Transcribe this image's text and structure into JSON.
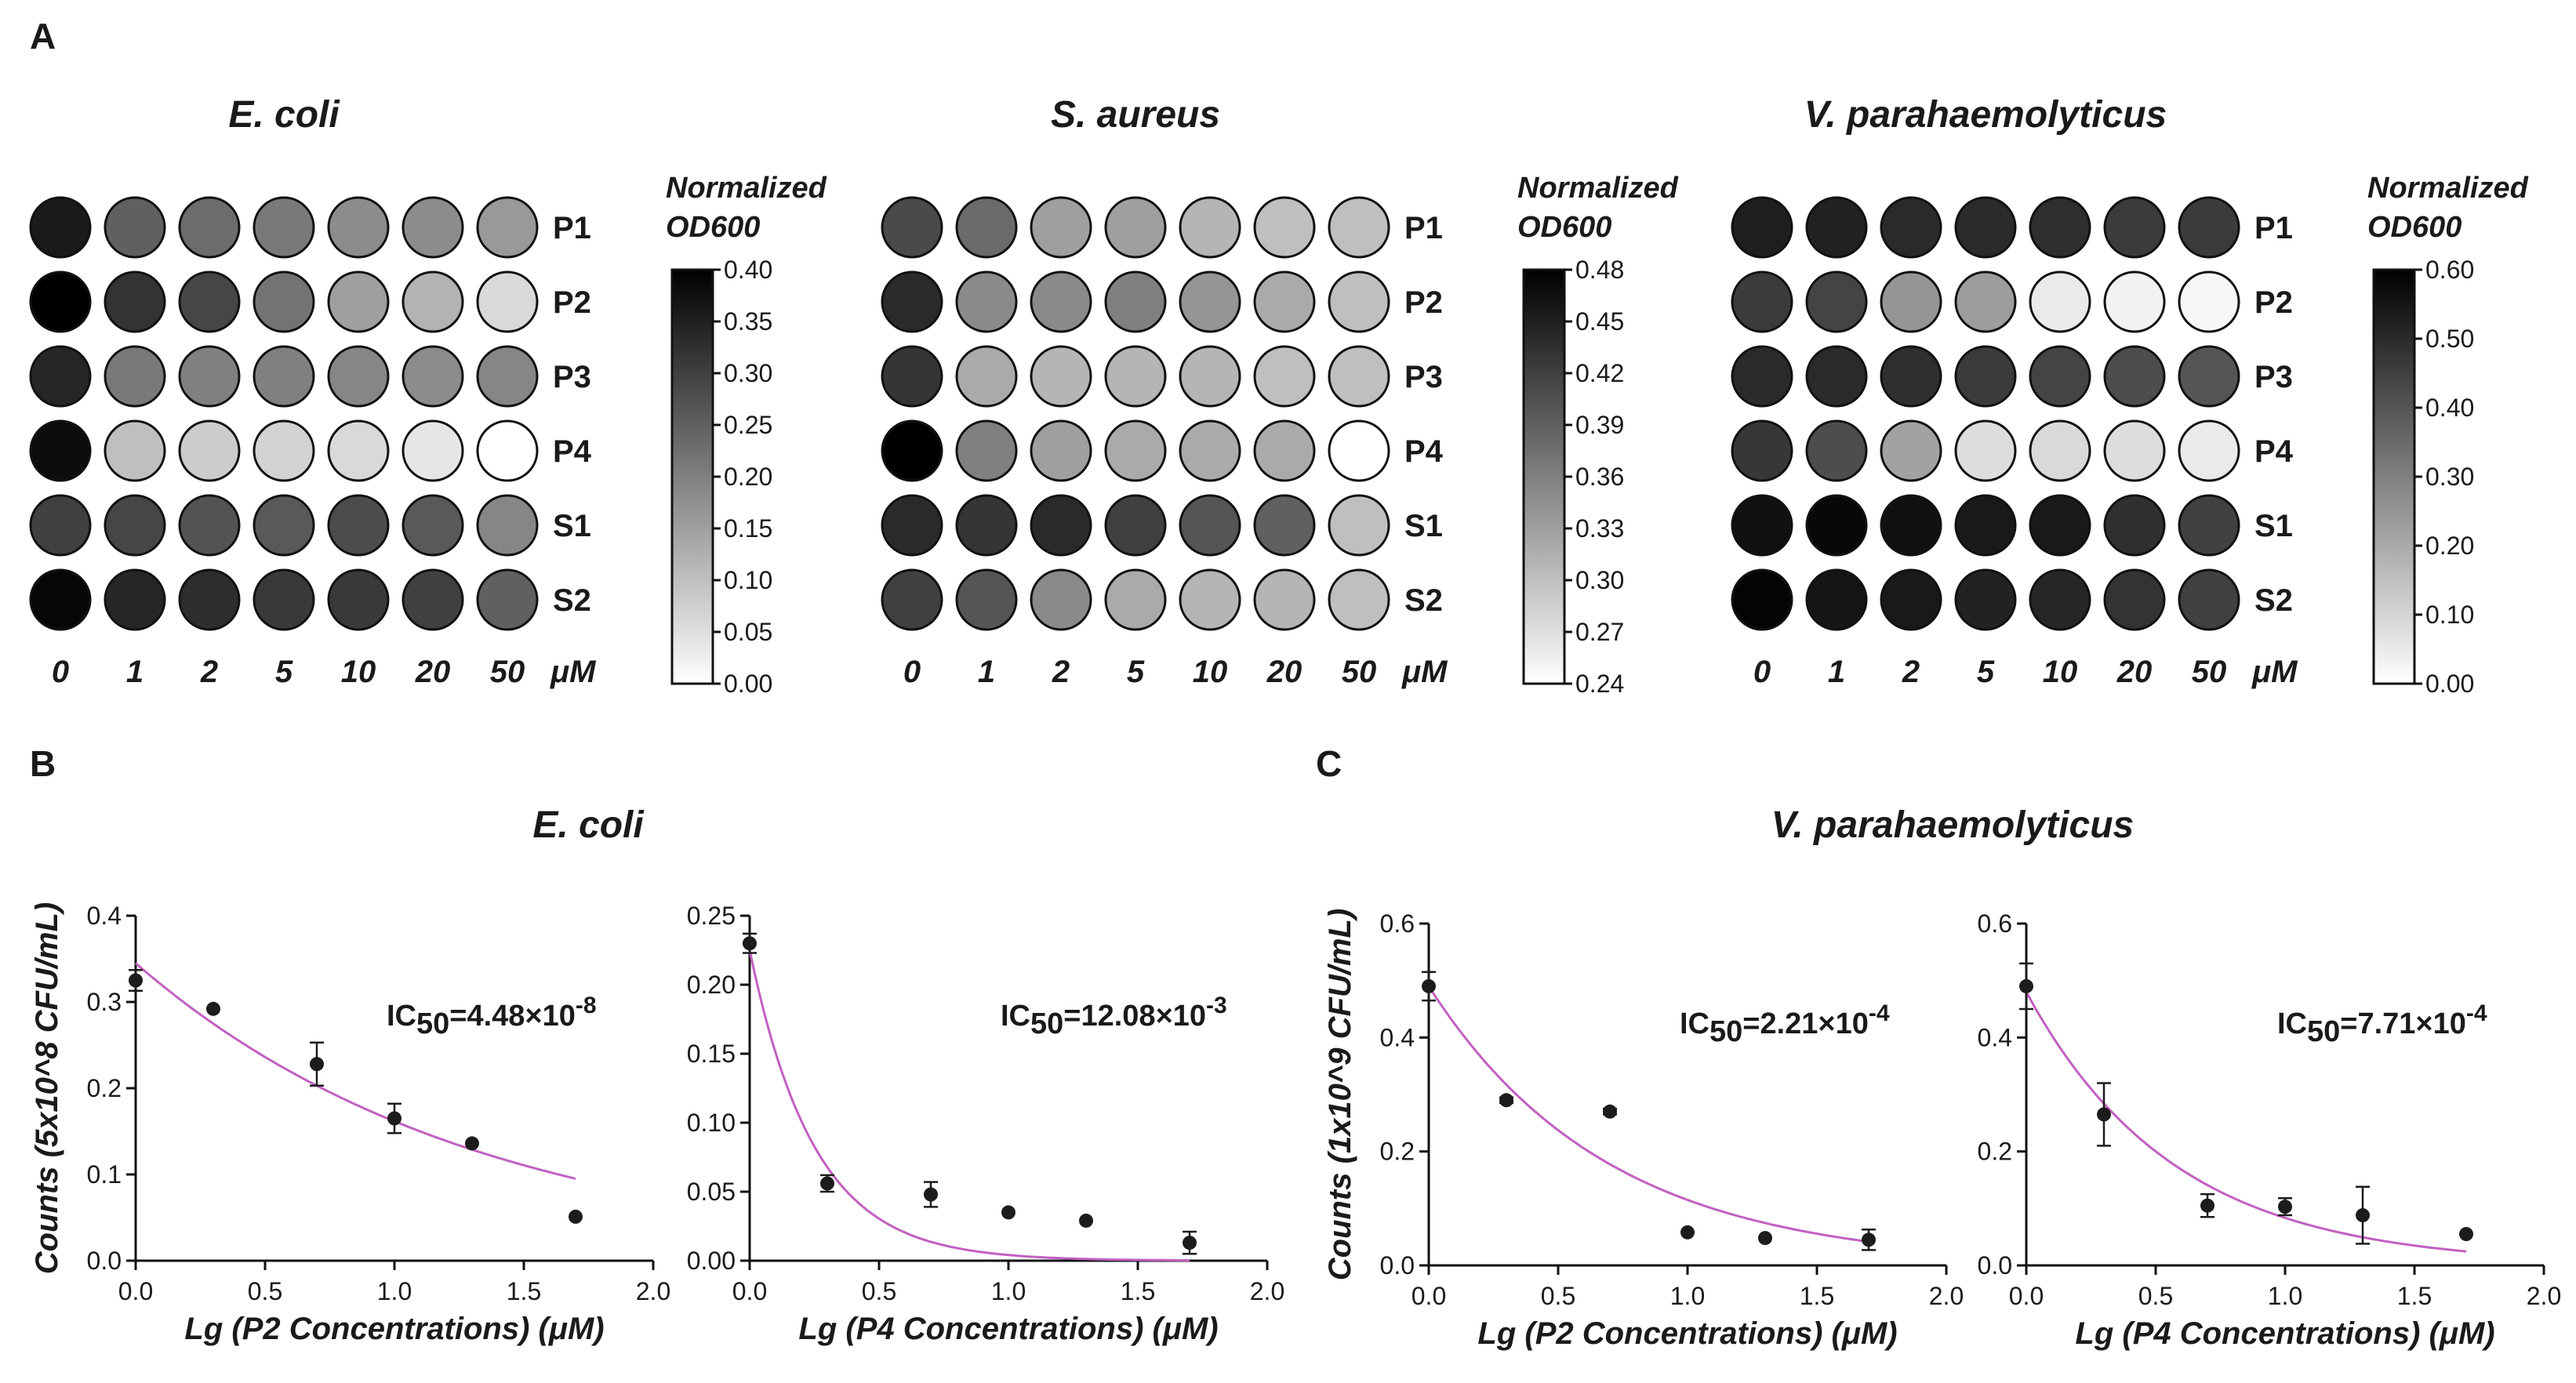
{
  "colors": {
    "curve": "#c161c1",
    "point": "#1c1c1c",
    "outline": "#111111"
  },
  "panel_labels": {
    "a": "A",
    "b": "B",
    "c": "C"
  },
  "heatmaps": [
    {
      "title": "E. coli",
      "row_labels": [
        "P1",
        "P2",
        "P3",
        "P4",
        "S1",
        "S2"
      ],
      "col_labels": [
        "0",
        "1",
        "2",
        "5",
        "10",
        "20",
        "50"
      ],
      "unit": "μM",
      "colorbar_label": [
        "Normalized",
        "OD600"
      ],
      "ticks": [
        "0.40",
        "0.35",
        "0.30",
        "0.25",
        "0.20",
        "0.15",
        "0.10",
        "0.05",
        "0.00"
      ],
      "vmin": 0.0,
      "vmax": 0.4,
      "values": [
        [
          0.36,
          0.25,
          0.23,
          0.21,
          0.18,
          0.18,
          0.16
        ],
        [
          0.4,
          0.32,
          0.29,
          0.22,
          0.15,
          0.12,
          0.06
        ],
        [
          0.34,
          0.21,
          0.2,
          0.2,
          0.19,
          0.18,
          0.19
        ],
        [
          0.38,
          0.1,
          0.08,
          0.07,
          0.06,
          0.04,
          0.0
        ],
        [
          0.3,
          0.29,
          0.27,
          0.26,
          0.28,
          0.26,
          0.19
        ],
        [
          0.39,
          0.34,
          0.33,
          0.31,
          0.31,
          0.3,
          0.25
        ]
      ]
    },
    {
      "title": "S. aureus",
      "row_labels": [
        "P1",
        "P2",
        "P3",
        "P4",
        "S1",
        "S2"
      ],
      "col_labels": [
        "0",
        "1",
        "2",
        "5",
        "10",
        "20",
        "50"
      ],
      "unit": "μM",
      "colorbar_label": [
        "Normalized",
        "OD600"
      ],
      "ticks": [
        "0.48",
        "0.45",
        "0.42",
        "0.39",
        "0.36",
        "0.33",
        "0.30",
        "0.27",
        "0.24"
      ],
      "vmin": 0.24,
      "vmax": 0.48,
      "values": [
        [
          0.41,
          0.38,
          0.33,
          0.33,
          0.31,
          0.3,
          0.3
        ],
        [
          0.44,
          0.35,
          0.35,
          0.36,
          0.34,
          0.32,
          0.3
        ],
        [
          0.43,
          0.32,
          0.31,
          0.31,
          0.31,
          0.3,
          0.3
        ],
        [
          0.48,
          0.36,
          0.33,
          0.32,
          0.32,
          0.32,
          0.24
        ],
        [
          0.44,
          0.43,
          0.44,
          0.42,
          0.4,
          0.39,
          0.3
        ],
        [
          0.42,
          0.4,
          0.35,
          0.32,
          0.31,
          0.31,
          0.3
        ]
      ]
    },
    {
      "title": "V. parahaemolyticus",
      "row_labels": [
        "P1",
        "P2",
        "P3",
        "P4",
        "S1",
        "S2"
      ],
      "col_labels": [
        "0",
        "1",
        "2",
        "5",
        "10",
        "20",
        "50"
      ],
      "unit": "μM",
      "colorbar_label": [
        "Normalized",
        "OD600"
      ],
      "ticks": [
        "0.60",
        "0.50",
        "0.40",
        "0.30",
        "0.20",
        "0.10",
        "0.00"
      ],
      "vmin": 0.0,
      "vmax": 0.6,
      "values": [
        [
          0.53,
          0.52,
          0.5,
          0.5,
          0.49,
          0.46,
          0.46
        ],
        [
          0.46,
          0.44,
          0.25,
          0.23,
          0.05,
          0.03,
          0.02
        ],
        [
          0.5,
          0.5,
          0.49,
          0.46,
          0.44,
          0.42,
          0.4
        ],
        [
          0.47,
          0.42,
          0.22,
          0.08,
          0.09,
          0.08,
          0.05
        ],
        [
          0.56,
          0.58,
          0.56,
          0.54,
          0.54,
          0.49,
          0.45
        ],
        [
          0.59,
          0.55,
          0.54,
          0.52,
          0.51,
          0.48,
          0.45
        ]
      ]
    }
  ],
  "chart_titles": {
    "b": "E. coli",
    "c": "V. parahaemolyticus"
  },
  "chart_data": [
    {
      "type": "scatter",
      "panel": "B",
      "ylabel": "Counts (5x10^8 CFU/mL)",
      "xlabel": "Lg (P2 Concentrations) (μM)",
      "xlim": [
        0,
        2.0
      ],
      "ylim": [
        0,
        0.4
      ],
      "xticks": [
        "0.0",
        "0.5",
        "1.0",
        "1.5",
        "2.0"
      ],
      "yticks": [
        "0.0",
        "0.1",
        "0.2",
        "0.3",
        "0.4"
      ],
      "x": [
        0,
        0.3,
        0.7,
        1.0,
        1.3,
        1.7
      ],
      "y": [
        0.325,
        0.292,
        0.228,
        0.165,
        0.136,
        0.051
      ],
      "err": [
        0.012,
        0.004,
        0.025,
        0.017,
        0.004,
        0.003
      ],
      "fit": {
        "a": 0.345,
        "k": 0.758
      },
      "ic50_text": "IC",
      "ic50_sub": "50",
      "ic50_value": "=4.48×10",
      "ic50_exp": "-8"
    },
    {
      "type": "scatter",
      "panel": "B",
      "ylabel": "",
      "xlabel": "Lg (P4 Concentrations) (μM)",
      "xlim": [
        0,
        2.0
      ],
      "ylim": [
        0,
        0.25
      ],
      "xticks": [
        "0.0",
        "0.5",
        "1.0",
        "1.5",
        "2.0"
      ],
      "yticks": [
        "0.00",
        "0.05",
        "0.10",
        "0.15",
        "0.20",
        "0.25"
      ],
      "x": [
        0,
        0.3,
        0.7,
        1.0,
        1.3,
        1.7
      ],
      "y": [
        0.23,
        0.056,
        0.048,
        0.035,
        0.029,
        0.013
      ],
      "err": [
        0.007,
        0.006,
        0.009,
        0.004,
        0.002,
        0.008
      ],
      "fit": {
        "a": 0.225,
        "k": 4.0
      },
      "ic50_text": "IC",
      "ic50_sub": "50",
      "ic50_value": "=12.08×10",
      "ic50_exp": "-3"
    },
    {
      "type": "scatter",
      "panel": "C",
      "ylabel": "Counts (1x10^9 CFU/mL)",
      "xlabel": "Lg (P2 Concentrations) (μM)",
      "xlim": [
        0,
        2.0
      ],
      "ylim": [
        0,
        0.6
      ],
      "xticks": [
        "0.0",
        "0.5",
        "1.0",
        "1.5",
        "2.0"
      ],
      "yticks": [
        "0.0",
        "0.2",
        "0.4",
        "0.6"
      ],
      "x": [
        0,
        0.3,
        0.7,
        1.0,
        1.3,
        1.7
      ],
      "y": [
        0.49,
        0.29,
        0.27,
        0.058,
        0.048,
        0.045
      ],
      "err": [
        0.025,
        0.005,
        0.005,
        0.004,
        0.004,
        0.018
      ],
      "fit": {
        "a": 0.49,
        "k": 1.45
      },
      "ic50_text": "IC",
      "ic50_sub": "50",
      "ic50_value": "=2.21×10",
      "ic50_exp": "-4"
    },
    {
      "type": "scatter",
      "panel": "C",
      "ylabel": "",
      "xlabel": "Lg (P4 Concentrations) (μM)",
      "xlim": [
        0,
        2.0
      ],
      "ylim": [
        0,
        0.6
      ],
      "xticks": [
        "0.0",
        "0.5",
        "1.0",
        "1.5",
        "2.0"
      ],
      "yticks": [
        "0.0",
        "0.2",
        "0.4",
        "0.6"
      ],
      "x": [
        0,
        0.3,
        0.7,
        1.0,
        1.3,
        1.7
      ],
      "y": [
        0.49,
        0.265,
        0.105,
        0.103,
        0.088,
        0.055
      ],
      "err": [
        0.04,
        0.055,
        0.02,
        0.015,
        0.05,
        0.004
      ],
      "fit": {
        "a": 0.48,
        "k": 1.75
      },
      "ic50_text": "IC",
      "ic50_sub": "50",
      "ic50_value": "=7.71×10",
      "ic50_exp": "-4"
    }
  ]
}
